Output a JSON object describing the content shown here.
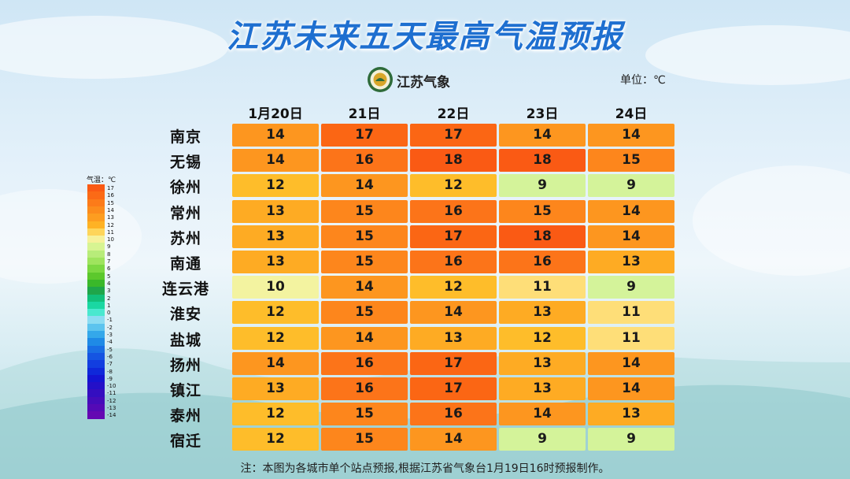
{
  "title": "江苏未来五天最高气温预报",
  "logo_text": "江苏气象",
  "unit_label": "单位：℃",
  "note": "注：本图为各城市单个站点预报,根据江苏省气象台1月19日16时预报制作。",
  "legend": {
    "title": "气温：℃",
    "levels": [
      {
        "label": "17",
        "color": "#fa5a14"
      },
      {
        "label": "16",
        "color": "#fb6a16"
      },
      {
        "label": "15",
        "color": "#fc7b19"
      },
      {
        "label": "14",
        "color": "#fc8c1c"
      },
      {
        "label": "13",
        "color": "#fd9d20"
      },
      {
        "label": "12",
        "color": "#feb224"
      },
      {
        "label": "11",
        "color": "#fed55a"
      },
      {
        "label": "10",
        "color": "#f6f19a"
      },
      {
        "label": "9",
        "color": "#d7f492"
      },
      {
        "label": "8",
        "color": "#b8ec7a"
      },
      {
        "label": "7",
        "color": "#9fe45e"
      },
      {
        "label": "6",
        "color": "#7cd842"
      },
      {
        "label": "5",
        "color": "#5cc82c"
      },
      {
        "label": "4",
        "color": "#3ab82a"
      },
      {
        "label": "3",
        "color": "#1fa64a"
      },
      {
        "label": "2",
        "color": "#12c07a"
      },
      {
        "label": "1",
        "color": "#1ad7a2"
      },
      {
        "label": "0",
        "color": "#4ae8cf"
      },
      {
        "label": "-1",
        "color": "#8cdcf2"
      },
      {
        "label": "-2",
        "color": "#5cc4ee"
      },
      {
        "label": "-3",
        "color": "#34a8ea"
      },
      {
        "label": "-4",
        "color": "#1f8ae6"
      },
      {
        "label": "-5",
        "color": "#196ee4"
      },
      {
        "label": "-6",
        "color": "#1555e2"
      },
      {
        "label": "-7",
        "color": "#123ee0"
      },
      {
        "label": "-8",
        "color": "#0f28da"
      },
      {
        "label": "-9",
        "color": "#1414d2"
      },
      {
        "label": "-10",
        "color": "#2410c8"
      },
      {
        "label": "-11",
        "color": "#340ec0"
      },
      {
        "label": "-12",
        "color": "#440cba"
      },
      {
        "label": "-13",
        "color": "#540ab6"
      },
      {
        "label": "-14",
        "color": "#6408b2"
      }
    ]
  },
  "chart_data": {
    "type": "table",
    "title": "江苏未来五天最高气温预报",
    "unit": "℃",
    "columns": [
      "1月20日",
      "21日",
      "22日",
      "23日",
      "24日"
    ],
    "rows": [
      {
        "city": "南京",
        "values": [
          14,
          17,
          17,
          14,
          14
        ]
      },
      {
        "city": "无锡",
        "values": [
          14,
          16,
          18,
          18,
          15
        ]
      },
      {
        "city": "徐州",
        "values": [
          12,
          14,
          12,
          9,
          9
        ]
      },
      {
        "city": "常州",
        "values": [
          13,
          15,
          16,
          15,
          14
        ]
      },
      {
        "city": "苏州",
        "values": [
          13,
          15,
          17,
          18,
          14
        ]
      },
      {
        "city": "南通",
        "values": [
          13,
          15,
          16,
          16,
          13
        ]
      },
      {
        "city": "连云港",
        "values": [
          10,
          14,
          12,
          11,
          9
        ]
      },
      {
        "city": "淮安",
        "values": [
          12,
          15,
          14,
          13,
          11
        ]
      },
      {
        "city": "盐城",
        "values": [
          12,
          14,
          13,
          12,
          11
        ]
      },
      {
        "city": "扬州",
        "values": [
          14,
          16,
          17,
          13,
          14
        ]
      },
      {
        "city": "镇江",
        "values": [
          13,
          16,
          17,
          13,
          14
        ]
      },
      {
        "city": "泰州",
        "values": [
          12,
          15,
          16,
          14,
          13
        ]
      },
      {
        "city": "宿迁",
        "values": [
          12,
          15,
          14,
          9,
          9
        ]
      }
    ],
    "cell_colors": {
      "18": "#fa5a14",
      "17": "#fb6614",
      "16": "#fc7419",
      "15": "#fd861c",
      "14": "#fd961f",
      "13": "#feab23",
      "12": "#febd2a",
      "11": "#fede78",
      "10": "#f3f3a0",
      "9": "#d4f39a"
    }
  }
}
